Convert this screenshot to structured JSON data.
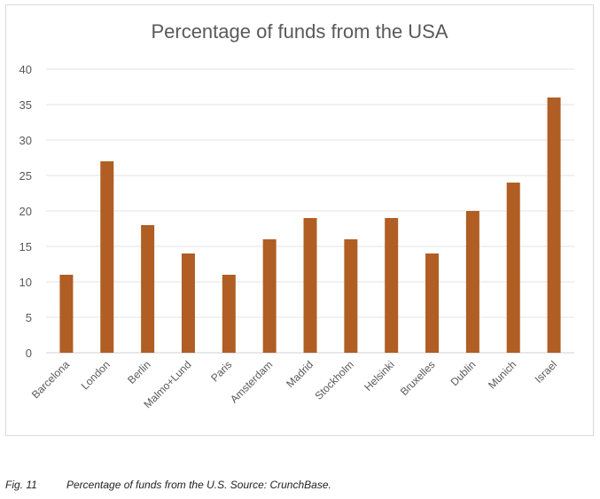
{
  "chart_data": {
    "type": "bar",
    "title": "Percentage of funds from the USA",
    "categories": [
      "Barcelona",
      "London",
      "Berlin",
      "Malmo+Lund",
      "Paris",
      "Amsterdam",
      "Madrid",
      "Stockholm",
      "Helsinki",
      "Bruxelles",
      "Dublin",
      "Munich",
      "Israel"
    ],
    "series": [
      {
        "values": [
          11,
          27,
          18,
          14,
          11,
          16,
          19,
          16,
          19,
          14,
          20,
          24,
          36
        ]
      }
    ],
    "ylim": [
      0,
      40
    ],
    "yticks": [
      0,
      5,
      10,
      15,
      20,
      25,
      30,
      35,
      40
    ],
    "grid": true,
    "legend": "none",
    "bar_color": "#b05e24",
    "grid_color": "#e3e3e3",
    "axis_color": "#d0d0d0",
    "text_color": "#595959"
  },
  "caption": {
    "figure": "Fig. 11",
    "text": "Percentage of funds from the U.S. Source: CrunchBase."
  }
}
